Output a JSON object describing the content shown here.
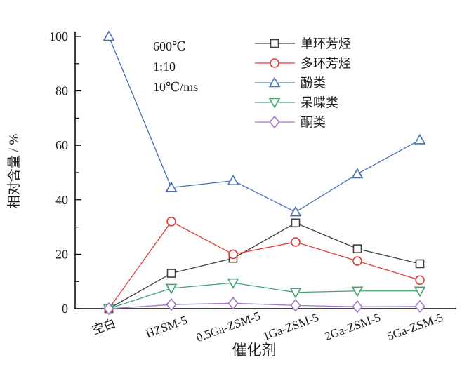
{
  "figure": {
    "background": "#ffffff",
    "text_color": "#1a1a1a",
    "axis_color": "#000000",
    "annotation": {
      "lines": [
        "600℃",
        "1:10",
        "10℃/ms"
      ]
    }
  },
  "chart_data": {
    "type": "line",
    "title": "",
    "xlabel": "催化剂",
    "ylabel": "相对含量 / %",
    "ylim": [
      0,
      100
    ],
    "ytick_major": 20,
    "ytick_minor": 10,
    "grid": false,
    "legend_position": "top-right-inside",
    "frame": "left-bottom-only",
    "categories": [
      "空白",
      "HZSM-5",
      "0.5Ga-ZSM-5",
      "1Ga-ZSM-5",
      "2Ga-ZSM-5",
      "5Ga-ZSM-5"
    ],
    "series": [
      {
        "name": "单环芳烃",
        "slug": "monocyclic-aromatics",
        "color": "#404040",
        "marker": "square",
        "values": [
          0,
          13,
          18.5,
          31.5,
          22,
          16.5
        ]
      },
      {
        "name": "多环芳烃",
        "slug": "polycyclic-aromatics",
        "color": "#e23b3b",
        "marker": "circle",
        "values": [
          0,
          32,
          20,
          24.5,
          17.5,
          10.5
        ]
      },
      {
        "name": "酚类",
        "slug": "phenols",
        "color": "#4470b8",
        "marker": "triangle-up",
        "values": [
          100,
          44.5,
          47,
          35.5,
          49.5,
          62
        ]
      },
      {
        "name": "呆喋类",
        "slug": "furans",
        "color": "#3fa46f",
        "marker": "triangle-down",
        "values": [
          0,
          7.5,
          9.5,
          6,
          6.5,
          6.5
        ]
      },
      {
        "name": "酮类",
        "slug": "ketones",
        "color": "#a478c8",
        "marker": "diamond",
        "values": [
          0,
          1.5,
          2,
          1.2,
          0.7,
          0.8
        ]
      }
    ]
  }
}
